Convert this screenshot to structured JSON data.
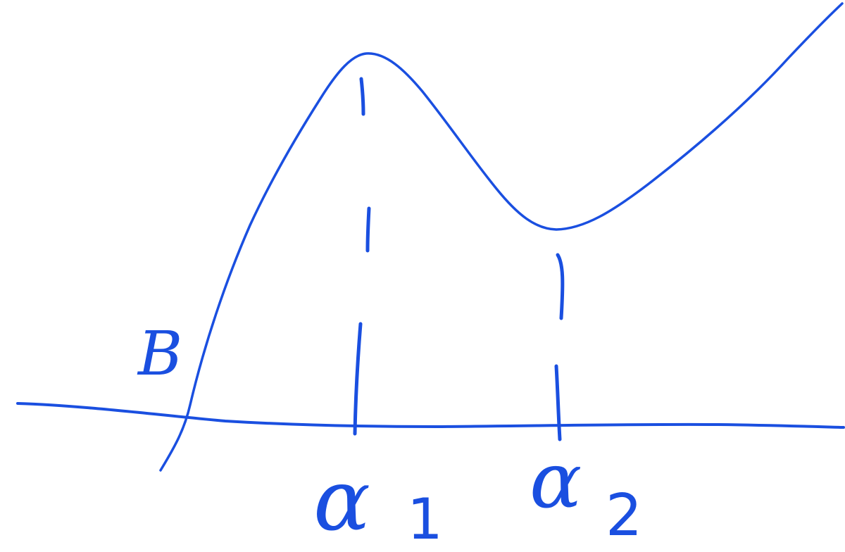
{
  "sketch": {
    "ink_color": "#1a4fe0",
    "background_color": "#ffffff",
    "labels": {
      "beta": "B",
      "alpha1_symbol": "α",
      "alpha1_subscript": "1",
      "alpha2_symbol": "α",
      "alpha2_subscript": "2"
    }
  }
}
